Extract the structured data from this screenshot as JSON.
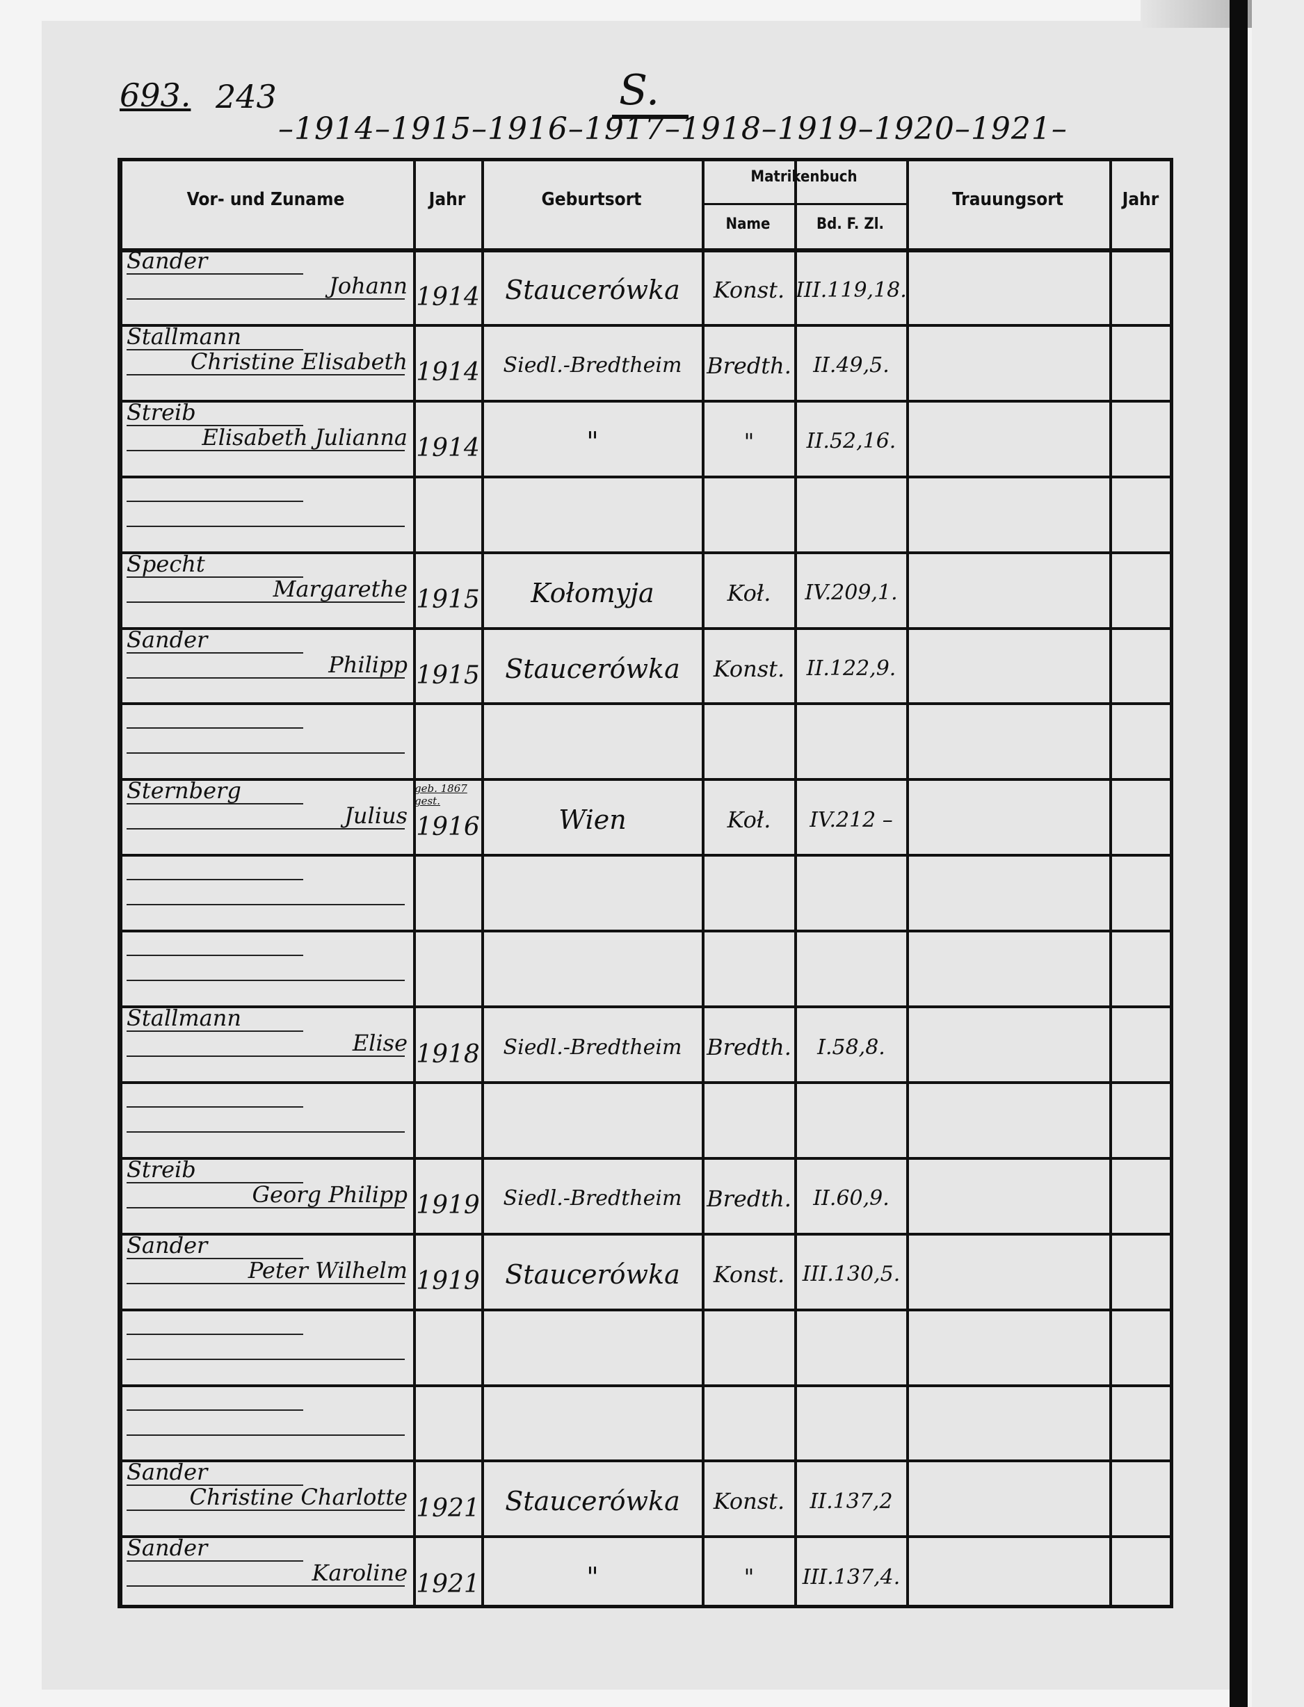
{
  "annotations": {
    "page_ref": "693.",
    "page_ref_2": "243",
    "letter": "S.",
    "years": "–1914–1915–1916–1917–1918–1919–1920–1921–"
  },
  "headers": {
    "name": "Vor- und Zuname",
    "year": "Jahr",
    "birthplace": "Geburtsort",
    "register": "Matrikenbuch",
    "register_name": "Name",
    "register_ref": "Bd. F. Zl.",
    "marriage_place": "Trauungsort",
    "marriage_year": "Jahr"
  },
  "rows": [
    {
      "surname": "Sander",
      "given": "Johann",
      "year": "1914",
      "place": "Staucerówka",
      "book": "Konst.",
      "ref": "III.119,18."
    },
    {
      "surname": "Stallmann",
      "given": "Christine Elisabeth",
      "year": "1914",
      "place": "Siedl.-Bredtheim",
      "book": "Bredth.",
      "ref": "II.49,5."
    },
    {
      "surname": "Streib",
      "given": "Elisabeth Julianna",
      "year": "1914",
      "place": "\"",
      "book": "\"",
      "ref": "II.52,16."
    },
    {},
    {
      "surname": "Specht",
      "given": "Margarethe",
      "year": "1915",
      "place": "Kołomyja",
      "book": "Koł.",
      "ref": "IV.209,1."
    },
    {
      "surname": "Sander",
      "given": "Philipp",
      "year": "1915",
      "place": "Staucerówka",
      "book": "Konst.",
      "ref": "II.122,9."
    },
    {},
    {
      "surname": "Sternberg",
      "given": "Julius",
      "year_note": "geb. 1867 gest.",
      "year": "1916",
      "place": "Wien",
      "book": "Koł.",
      "ref": "IV.212 –"
    },
    {},
    {},
    {
      "surname": "Stallmann",
      "given": "Elise",
      "year": "1918",
      "place": "Siedl.-Bredtheim",
      "book": "Bredth.",
      "ref": "I.58,8."
    },
    {},
    {
      "surname": "Streib",
      "given": "Georg Philipp",
      "year": "1919",
      "place": "Siedl.-Bredtheim",
      "book": "Bredth.",
      "ref": "II.60,9."
    },
    {
      "surname": "Sander",
      "given": "Peter Wilhelm",
      "year": "1919",
      "place": "Staucerówka",
      "book": "Konst.",
      "ref": "III.130,5."
    },
    {},
    {},
    {
      "surname": "Sander",
      "given": "Christine Charlotte",
      "year": "1921",
      "place": "Staucerówka",
      "book": "Konst.",
      "ref": "II.137,2"
    },
    {
      "surname": "Sander",
      "given": "Karoline",
      "year": "1921",
      "place": "\"",
      "book": "\"",
      "ref": "III.137,4."
    }
  ]
}
